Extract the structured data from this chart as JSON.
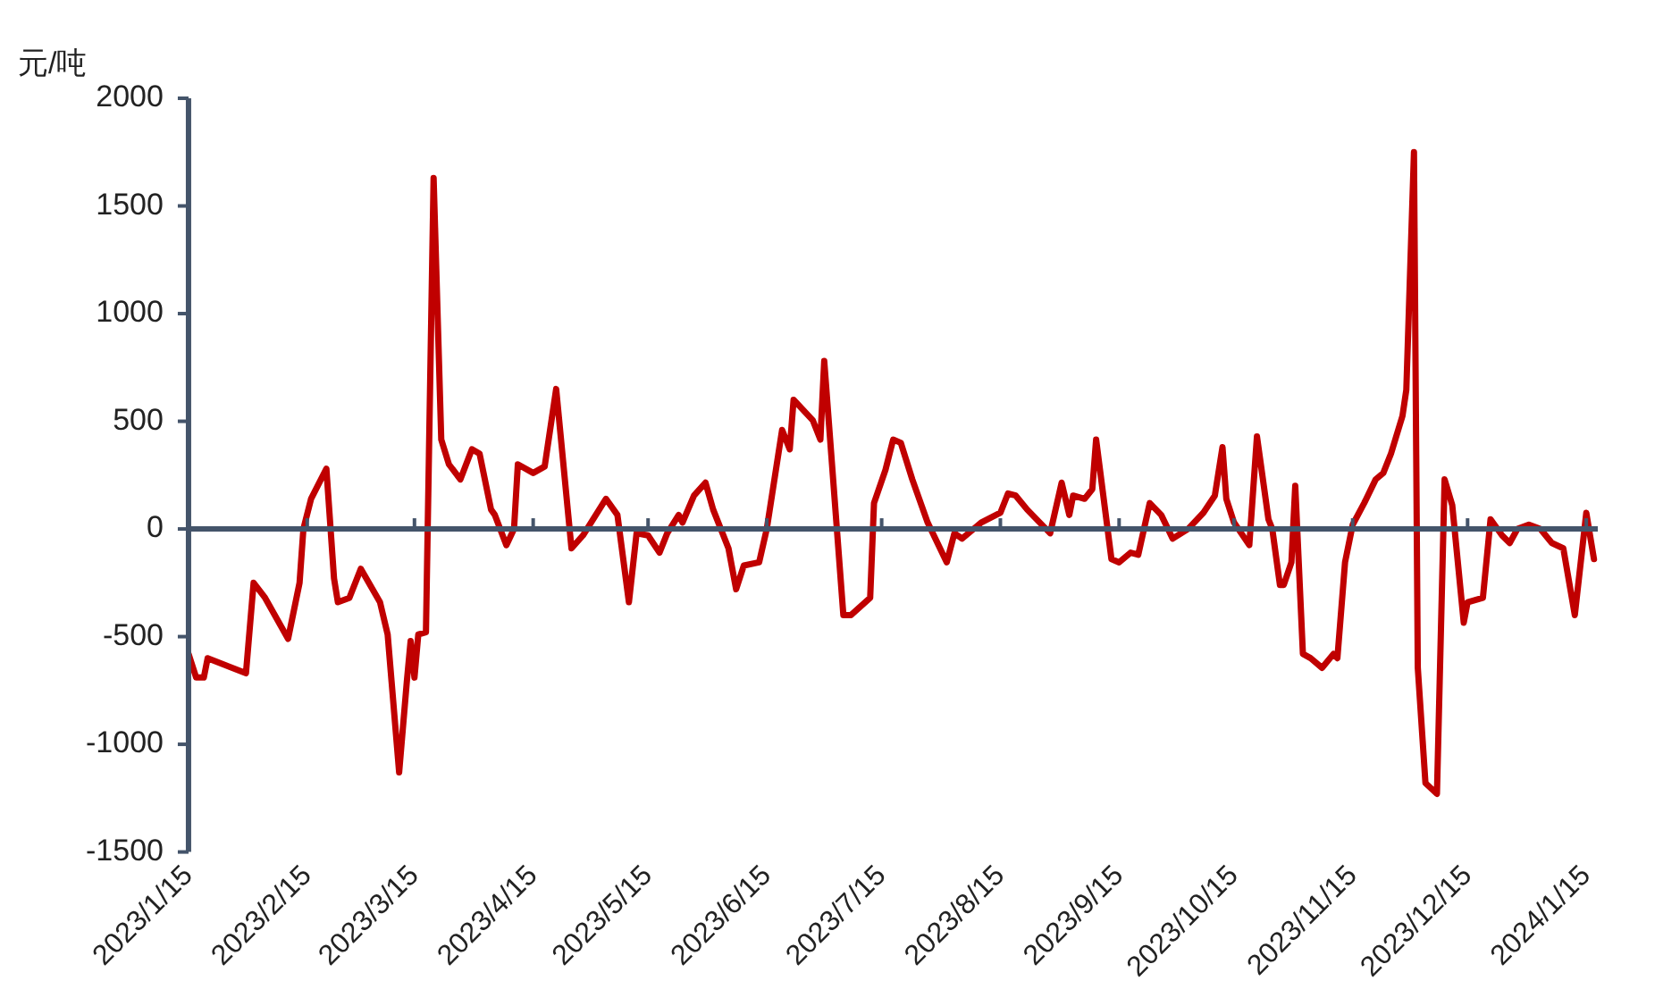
{
  "chart_data": {
    "type": "line",
    "ylabel": "元/吨",
    "x": [
      "2023-01-15",
      "2023-01-17",
      "2023-01-19",
      "2023-01-20",
      "2023-01-30",
      "2023-02-01",
      "2023-02-04",
      "2023-02-10",
      "2023-02-13",
      "2023-02-14",
      "2023-02-16",
      "2023-02-20",
      "2023-02-22",
      "2023-02-23",
      "2023-02-26",
      "2023-03-01",
      "2023-03-06",
      "2023-03-08",
      "2023-03-11",
      "2023-03-13",
      "2023-03-14",
      "2023-03-15",
      "2023-03-16",
      "2023-03-18",
      "2023-03-20",
      "2023-03-22",
      "2023-03-24",
      "2023-03-27",
      "2023-03-30",
      "2023-04-01",
      "2023-04-04",
      "2023-04-05",
      "2023-04-08",
      "2023-04-10",
      "2023-04-11",
      "2023-04-15",
      "2023-04-18",
      "2023-04-21",
      "2023-04-25",
      "2023-04-28",
      "2023-05-04",
      "2023-05-07",
      "2023-05-10",
      "2023-05-12",
      "2023-05-15",
      "2023-05-18",
      "2023-05-20",
      "2023-05-23",
      "2023-05-24",
      "2023-05-27",
      "2023-05-30",
      "2023-06-01",
      "2023-06-05",
      "2023-06-07",
      "2023-06-09",
      "2023-06-13",
      "2023-06-15",
      "2023-06-19",
      "2023-06-21",
      "2023-06-22",
      "2023-06-27",
      "2023-06-29",
      "2023-06-30",
      "2023-07-05",
      "2023-07-07",
      "2023-07-12",
      "2023-07-13",
      "2023-07-16",
      "2023-07-18",
      "2023-07-20",
      "2023-07-23",
      "2023-07-27",
      "2023-08-01",
      "2023-08-03",
      "2023-08-05",
      "2023-08-10",
      "2023-08-15",
      "2023-08-17",
      "2023-08-19",
      "2023-08-22",
      "2023-08-28",
      "2023-08-31",
      "2023-09-02",
      "2023-09-03",
      "2023-09-06",
      "2023-09-08",
      "2023-09-09",
      "2023-09-13",
      "2023-09-15",
      "2023-09-18",
      "2023-09-20",
      "2023-09-23",
      "2023-09-26",
      "2023-09-29",
      "2023-10-03",
      "2023-10-07",
      "2023-10-10",
      "2023-10-12",
      "2023-10-13",
      "2023-10-15",
      "2023-10-19",
      "2023-10-21",
      "2023-10-24",
      "2023-10-25",
      "2023-10-27",
      "2023-10-28",
      "2023-10-30",
      "2023-10-31",
      "2023-11-02",
      "2023-11-04",
      "2023-11-07",
      "2023-11-10",
      "2023-11-11",
      "2023-11-13",
      "2023-11-15",
      "2023-11-18",
      "2023-11-21",
      "2023-11-23",
      "2023-11-25",
      "2023-11-28",
      "2023-11-29",
      "2023-12-01",
      "2023-12-02",
      "2023-12-04",
      "2023-12-07",
      "2023-12-09",
      "2023-12-11",
      "2023-12-14",
      "2023-12-15",
      "2023-12-19",
      "2023-12-21",
      "2023-12-24",
      "2023-12-26",
      "2023-12-28",
      "2023-12-31",
      "2024-01-03",
      "2024-01-06",
      "2024-01-09",
      "2024-01-12",
      "2024-01-15",
      "2024-01-17"
    ],
    "series": [
      {
        "color": "#c00000",
        "values": [
          -580,
          -690,
          -690,
          -600,
          -670,
          -250,
          -320,
          -510,
          -250,
          0,
          140,
          280,
          -230,
          -340,
          -320,
          -185,
          -340,
          -490,
          -1130,
          -710,
          -520,
          -690,
          -490,
          -480,
          1630,
          415,
          300,
          230,
          370,
          350,
          90,
          65,
          -75,
          0,
          300,
          260,
          290,
          650,
          -90,
          -30,
          140,
          65,
          -340,
          -20,
          -30,
          -110,
          -20,
          65,
          30,
          155,
          215,
          90,
          -90,
          -280,
          -170,
          -155,
          0,
          460,
          370,
          600,
          505,
          415,
          780,
          -400,
          -400,
          -320,
          120,
          275,
          415,
          400,
          230,
          30,
          -155,
          -20,
          -45,
          30,
          75,
          165,
          155,
          90,
          -20,
          215,
          65,
          155,
          140,
          185,
          415,
          -140,
          -155,
          -110,
          -120,
          120,
          65,
          -45,
          0,
          75,
          155,
          380,
          140,
          30,
          -75,
          430,
          45,
          0,
          -260,
          -260,
          -155,
          200,
          -580,
          -600,
          -645,
          -580,
          -600,
          -155,
          20,
          120,
          230,
          260,
          350,
          525,
          645,
          1750,
          -645,
          -1180,
          -1230,
          230,
          110,
          -435,
          -340,
          -320,
          45,
          -30,
          -65,
          0,
          20,
          0,
          -65,
          -90,
          -400,
          75,
          -140
        ]
      }
    ],
    "xlim": [
      "2023-01-15",
      "2024-01-18"
    ],
    "xticks": [
      {
        "value": "2023-01-15",
        "label": "2023/1/15"
      },
      {
        "value": "2023-02-15",
        "label": "2023/2/15"
      },
      {
        "value": "2023-03-15",
        "label": "2023/3/15"
      },
      {
        "value": "2023-04-15",
        "label": "2023/4/15"
      },
      {
        "value": "2023-05-15",
        "label": "2023/5/15"
      },
      {
        "value": "2023-06-15",
        "label": "2023/6/15"
      },
      {
        "value": "2023-07-15",
        "label": "2023/7/15"
      },
      {
        "value": "2023-08-15",
        "label": "2023/8/15"
      },
      {
        "value": "2023-09-15",
        "label": "2023/9/15"
      },
      {
        "value": "2023-10-15",
        "label": "2023/10/15"
      },
      {
        "value": "2023-11-15",
        "label": "2023/11/15"
      },
      {
        "value": "2023-12-15",
        "label": "2023/12/15"
      },
      {
        "value": "2024-01-15",
        "label": "2024/1/15"
      }
    ],
    "ylim": [
      -1500,
      2000
    ],
    "yticks": [
      -1500,
      -1000,
      -500,
      0,
      500,
      1000,
      1500,
      2000
    ],
    "legend": false,
    "marker": "none",
    "line_style": "solid"
  }
}
